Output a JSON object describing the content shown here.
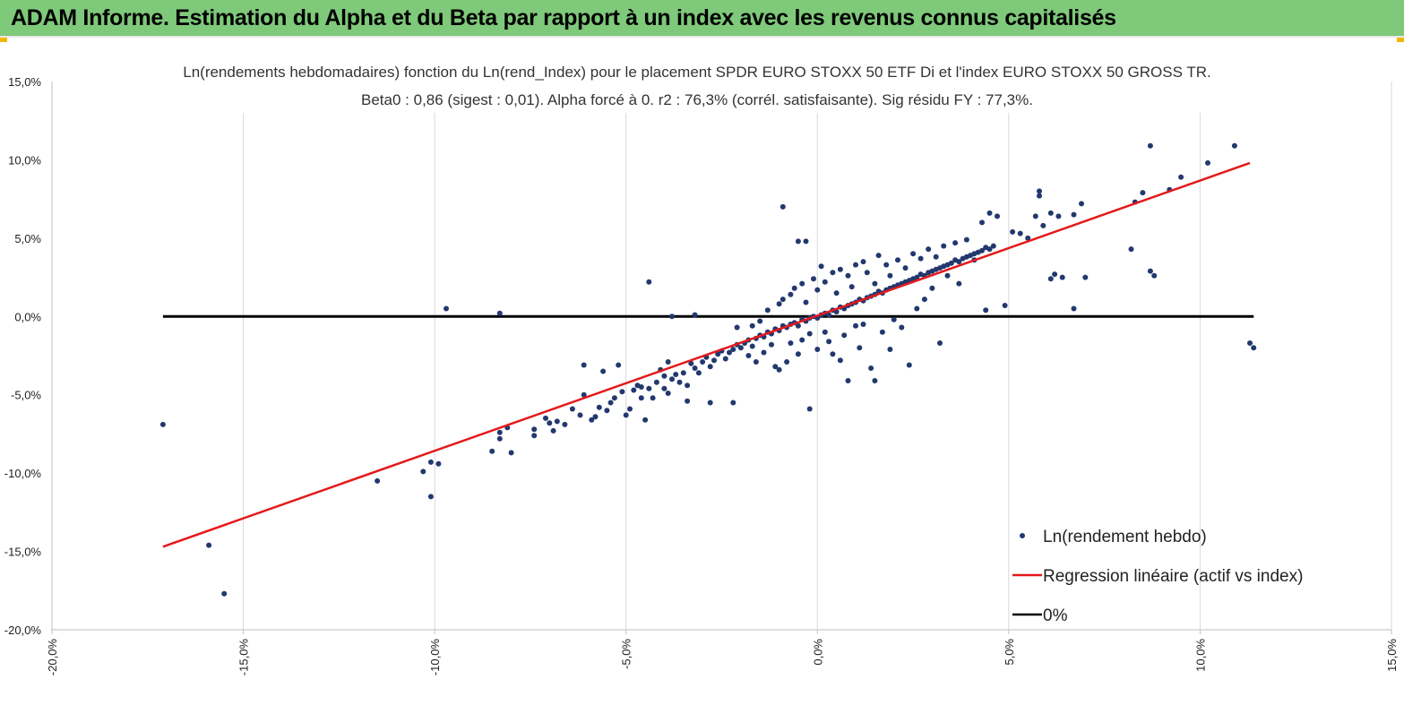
{
  "header": {
    "title": "ADAM Informe. Estimation du Alpha et du Beta par rapport à un index avec les revenus connus capitalisés",
    "background": "#7fc97a"
  },
  "chart_data": {
    "type": "scatter",
    "title": "Ln(rendements hebdomadaires) fonction du Ln(rend_Index) pour le placement SPDR EURO STOXX 50 ETF Di et l'index EURO STOXX 50 GROSS TR.",
    "subtitle": "Beta0 : 0,86  (sigest : 0,01).  Alpha forcé à 0. r2 : 76,3% (corrél. satisfaisante). Sig résidu FY : 77,3%.",
    "xlim": [
      -0.2,
      0.15
    ],
    "ylim": [
      -0.2,
      0.15
    ],
    "xticks": [
      -0.2,
      -0.15,
      -0.1,
      -0.05,
      0.0,
      0.05,
      0.1,
      0.15
    ],
    "yticks": [
      0.15,
      0.1,
      0.05,
      0.0,
      -0.05,
      -0.1,
      -0.15,
      -0.2
    ],
    "xtick_labels": [
      "-20,0%",
      "-15,0%",
      "-10,0%",
      "-5,0%",
      "0,0%",
      "5,0%",
      "10,0%",
      "15,0%"
    ],
    "ytick_labels": [
      "15,0%",
      "10,0%",
      "5,0%",
      "0,0%",
      "-5,0%",
      "-10,0%",
      "-15,0%",
      "-20,0%"
    ],
    "grid": "vertical",
    "legend_position": "bottom-right",
    "legend": [
      {
        "label": "Ln(rendement hebdo)",
        "kind": "marker",
        "color": "#22386e"
      },
      {
        "label": "Regression linéaire (actif vs index)",
        "kind": "line",
        "color": "#e41a1c"
      },
      {
        "label": "0%",
        "kind": "line",
        "color": "#000000"
      }
    ],
    "series": [
      {
        "name": "Ln(rendement hebdo)",
        "kind": "scatter",
        "color": "#22386e",
        "points": [
          [
            -0.171,
            -0.069
          ],
          [
            -0.159,
            -0.146
          ],
          [
            -0.155,
            -0.177
          ],
          [
            -0.115,
            -0.105
          ],
          [
            -0.103,
            -0.099
          ],
          [
            -0.101,
            -0.115
          ],
          [
            -0.101,
            -0.093
          ],
          [
            -0.099,
            -0.094
          ],
          [
            -0.097,
            0.005
          ],
          [
            -0.083,
            0.002
          ],
          [
            -0.085,
            -0.086
          ],
          [
            -0.083,
            -0.074
          ],
          [
            -0.083,
            -0.078
          ],
          [
            -0.081,
            -0.071
          ],
          [
            -0.08,
            -0.087
          ],
          [
            -0.074,
            -0.072
          ],
          [
            -0.074,
            -0.076
          ],
          [
            -0.071,
            -0.065
          ],
          [
            -0.07,
            -0.068
          ],
          [
            -0.069,
            -0.073
          ],
          [
            -0.068,
            -0.067
          ],
          [
            -0.066,
            -0.069
          ],
          [
            -0.064,
            -0.059
          ],
          [
            -0.062,
            -0.063
          ],
          [
            -0.061,
            -0.05
          ],
          [
            -0.061,
            -0.031
          ],
          [
            -0.059,
            -0.066
          ],
          [
            -0.058,
            -0.064
          ],
          [
            -0.057,
            -0.058
          ],
          [
            -0.056,
            -0.035
          ],
          [
            -0.055,
            -0.06
          ],
          [
            -0.054,
            -0.055
          ],
          [
            -0.053,
            -0.052
          ],
          [
            -0.052,
            -0.031
          ],
          [
            -0.051,
            -0.048
          ],
          [
            -0.05,
            -0.063
          ],
          [
            -0.049,
            -0.059
          ],
          [
            -0.048,
            -0.047
          ],
          [
            -0.047,
            -0.044
          ],
          [
            -0.046,
            -0.052
          ],
          [
            -0.046,
            -0.045
          ],
          [
            -0.045,
            -0.066
          ],
          [
            -0.044,
            -0.046
          ],
          [
            -0.043,
            -0.052
          ],
          [
            -0.042,
            -0.042
          ],
          [
            -0.041,
            -0.034
          ],
          [
            -0.04,
            -0.046
          ],
          [
            -0.04,
            -0.038
          ],
          [
            -0.039,
            -0.029
          ],
          [
            -0.039,
            -0.049
          ],
          [
            -0.038,
            -0.04
          ],
          [
            -0.037,
            -0.037
          ],
          [
            -0.036,
            -0.042
          ],
          [
            -0.035,
            -0.036
          ],
          [
            -0.034,
            -0.044
          ],
          [
            -0.033,
            -0.03
          ],
          [
            -0.032,
            -0.033
          ],
          [
            -0.031,
            -0.036
          ],
          [
            -0.03,
            -0.029
          ],
          [
            -0.029,
            -0.026
          ],
          [
            -0.028,
            -0.055
          ],
          [
            -0.028,
            -0.032
          ],
          [
            -0.027,
            -0.028
          ],
          [
            -0.026,
            -0.024
          ],
          [
            -0.025,
            -0.022
          ],
          [
            -0.024,
            -0.027
          ],
          [
            -0.023,
            -0.023
          ],
          [
            -0.022,
            -0.021
          ],
          [
            -0.021,
            -0.018
          ],
          [
            -0.02,
            -0.02
          ],
          [
            -0.019,
            -0.017
          ],
          [
            -0.018,
            -0.015
          ],
          [
            -0.017,
            -0.019
          ],
          [
            -0.016,
            -0.014
          ],
          [
            -0.015,
            -0.012
          ],
          [
            -0.014,
            -0.013
          ],
          [
            -0.013,
            -0.01
          ],
          [
            -0.012,
            -0.011
          ],
          [
            -0.011,
            -0.008
          ],
          [
            -0.01,
            -0.009
          ],
          [
            -0.009,
            -0.006
          ],
          [
            -0.008,
            -0.007
          ],
          [
            -0.007,
            -0.005
          ],
          [
            -0.006,
            -0.004
          ],
          [
            -0.005,
            -0.006
          ],
          [
            -0.004,
            -0.002
          ],
          [
            -0.003,
            -0.003
          ],
          [
            -0.002,
            -0.001
          ],
          [
            -0.001,
            0.0
          ],
          [
            0.0,
            -0.001
          ],
          [
            0.001,
            0.001
          ],
          [
            0.002,
            0.002
          ],
          [
            0.003,
            0.001
          ],
          [
            0.004,
            0.004
          ],
          [
            0.005,
            0.003
          ],
          [
            0.006,
            0.006
          ],
          [
            0.007,
            0.005
          ],
          [
            0.008,
            0.007
          ],
          [
            0.009,
            0.008
          ],
          [
            0.01,
            0.009
          ],
          [
            0.011,
            0.011
          ],
          [
            0.012,
            0.01
          ],
          [
            0.013,
            0.012
          ],
          [
            0.014,
            0.013
          ],
          [
            0.015,
            0.014
          ],
          [
            0.016,
            0.016
          ],
          [
            0.017,
            0.015
          ],
          [
            0.018,
            0.017
          ],
          [
            0.019,
            0.018
          ],
          [
            0.02,
            0.019
          ],
          [
            0.021,
            0.02
          ],
          [
            0.022,
            0.021
          ],
          [
            0.023,
            0.022
          ],
          [
            0.024,
            0.023
          ],
          [
            0.025,
            0.024
          ],
          [
            0.026,
            0.025
          ],
          [
            0.027,
            0.027
          ],
          [
            0.028,
            0.026
          ],
          [
            0.029,
            0.028
          ],
          [
            0.03,
            0.029
          ],
          [
            0.031,
            0.03
          ],
          [
            0.032,
            0.031
          ],
          [
            0.033,
            0.032
          ],
          [
            0.034,
            0.033
          ],
          [
            0.035,
            0.034
          ],
          [
            0.036,
            0.036
          ],
          [
            0.037,
            0.035
          ],
          [
            0.038,
            0.037
          ],
          [
            0.039,
            0.038
          ],
          [
            0.04,
            0.039
          ],
          [
            0.041,
            0.04
          ],
          [
            0.042,
            0.041
          ],
          [
            0.043,
            0.042
          ],
          [
            0.044,
            0.044
          ],
          [
            0.045,
            0.043
          ],
          [
            0.046,
            0.045
          ],
          [
            -0.021,
            -0.007
          ],
          [
            -0.018,
            -0.025
          ],
          [
            -0.017,
            -0.006
          ],
          [
            -0.016,
            -0.029
          ],
          [
            -0.015,
            -0.003
          ],
          [
            -0.014,
            -0.023
          ],
          [
            -0.013,
            0.004
          ],
          [
            -0.012,
            -0.018
          ],
          [
            -0.011,
            -0.032
          ],
          [
            -0.01,
            0.008
          ],
          [
            -0.01,
            -0.034
          ],
          [
            -0.009,
            0.07
          ],
          [
            -0.009,
            0.011
          ],
          [
            -0.008,
            -0.029
          ],
          [
            -0.007,
            0.014
          ],
          [
            -0.007,
            -0.017
          ],
          [
            -0.006,
            0.018
          ],
          [
            -0.005,
            -0.024
          ],
          [
            -0.005,
            0.048
          ],
          [
            -0.004,
            0.021
          ],
          [
            -0.004,
            -0.015
          ],
          [
            -0.003,
            0.048
          ],
          [
            -0.003,
            0.009
          ],
          [
            -0.002,
            -0.059
          ],
          [
            -0.002,
            -0.011
          ],
          [
            -0.001,
            0.024
          ],
          [
            0.0,
            0.017
          ],
          [
            0.0,
            -0.021
          ],
          [
            0.001,
            0.032
          ],
          [
            0.002,
            -0.01
          ],
          [
            0.002,
            0.022
          ],
          [
            0.003,
            -0.016
          ],
          [
            0.004,
            0.028
          ],
          [
            0.004,
            -0.024
          ],
          [
            0.005,
            0.015
          ],
          [
            0.006,
            -0.028
          ],
          [
            0.006,
            0.03
          ],
          [
            0.007,
            -0.012
          ],
          [
            0.008,
            0.026
          ],
          [
            0.008,
            -0.041
          ],
          [
            0.009,
            0.019
          ],
          [
            0.01,
            -0.006
          ],
          [
            0.01,
            0.033
          ],
          [
            0.011,
            -0.02
          ],
          [
            0.012,
            0.035
          ],
          [
            0.012,
            -0.005
          ],
          [
            0.013,
            0.028
          ],
          [
            0.014,
            -0.033
          ],
          [
            0.015,
            0.021
          ],
          [
            0.015,
            -0.041
          ],
          [
            0.016,
            0.039
          ],
          [
            0.017,
            -0.01
          ],
          [
            0.018,
            0.033
          ],
          [
            0.019,
            -0.021
          ],
          [
            0.019,
            0.026
          ],
          [
            0.02,
            -0.002
          ],
          [
            0.021,
            0.036
          ],
          [
            0.022,
            -0.007
          ],
          [
            0.023,
            0.031
          ],
          [
            0.024,
            -0.031
          ],
          [
            0.025,
            0.04
          ],
          [
            0.026,
            0.005
          ],
          [
            0.027,
            0.037
          ],
          [
            0.028,
            0.011
          ],
          [
            0.029,
            0.043
          ],
          [
            0.03,
            0.018
          ],
          [
            0.031,
            0.038
          ],
          [
            0.032,
            -0.017
          ],
          [
            0.033,
            0.045
          ],
          [
            0.034,
            0.026
          ],
          [
            0.036,
            0.047
          ],
          [
            0.037,
            0.021
          ],
          [
            0.039,
            0.049
          ],
          [
            0.041,
            0.036
          ],
          [
            0.043,
            0.06
          ],
          [
            0.044,
            0.004
          ],
          [
            0.045,
            0.066
          ],
          [
            0.047,
            0.064
          ],
          [
            0.049,
            0.007
          ],
          [
            0.051,
            0.054
          ],
          [
            0.053,
            0.053
          ],
          [
            0.055,
            0.05
          ],
          [
            0.057,
            0.064
          ],
          [
            0.058,
            0.08
          ],
          [
            0.058,
            0.077
          ],
          [
            0.059,
            0.058
          ],
          [
            0.061,
            0.066
          ],
          [
            0.061,
            0.024
          ],
          [
            0.062,
            0.027
          ],
          [
            0.063,
            0.064
          ],
          [
            0.064,
            0.025
          ],
          [
            0.067,
            0.005
          ],
          [
            0.067,
            0.065
          ],
          [
            0.069,
            0.072
          ],
          [
            0.07,
            0.025
          ],
          [
            0.082,
            0.043
          ],
          [
            0.083,
            0.073
          ],
          [
            0.085,
            0.079
          ],
          [
            0.087,
            0.109
          ],
          [
            0.087,
            0.029
          ],
          [
            0.088,
            0.026
          ],
          [
            0.092,
            0.081
          ],
          [
            0.095,
            0.089
          ],
          [
            0.102,
            0.098
          ],
          [
            0.109,
            0.109
          ],
          [
            0.113,
            -0.017
          ],
          [
            0.114,
            -0.02
          ],
          [
            -0.044,
            0.022
          ],
          [
            -0.038,
            0.0
          ],
          [
            -0.032,
            0.001
          ],
          [
            -0.022,
            -0.055
          ],
          [
            -0.034,
            -0.054
          ]
        ]
      },
      {
        "name": "Regression linéaire (actif vs index)",
        "kind": "line",
        "color": "#e41a1c",
        "x": [
          -0.171,
          0.113
        ],
        "y": [
          -0.147,
          0.098
        ]
      },
      {
        "name": "0%",
        "kind": "line",
        "color": "#000000",
        "x": [
          -0.171,
          0.114
        ],
        "y": [
          0.0,
          0.0
        ]
      }
    ]
  }
}
